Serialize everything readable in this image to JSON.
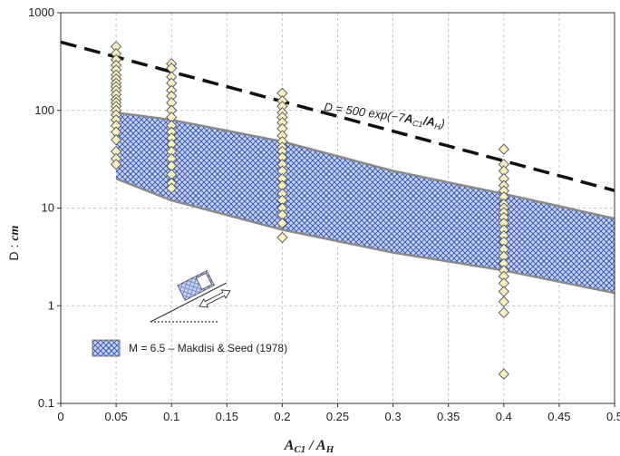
{
  "chart_data": {
    "type": "scatter",
    "title": "",
    "xlabel": "A",
    "xlabel_sub1": "C1",
    "xlabel_mid": " / A",
    "xlabel_sub2": "H",
    "ylabel_prefix": "D : ",
    "ylabel_unit": "cm",
    "xlim": [
      0,
      0.5
    ],
    "ylim": [
      0.1,
      1000
    ],
    "y_scale": "log",
    "grid": true,
    "x_ticks": [
      0,
      0.05,
      0.1,
      0.15,
      0.2,
      0.25,
      0.3,
      0.35,
      0.4,
      0.45,
      0.5
    ],
    "x_tick_labels": [
      "0",
      "0.05",
      "0.1",
      "0.15",
      "0.2",
      "0.25",
      "0.3",
      "0.35",
      "0.4",
      "0.45",
      "0.5"
    ],
    "y_ticks": [
      0.1,
      1,
      10,
      100,
      1000
    ],
    "y_tick_labels": [
      "0.1",
      "1",
      "10",
      "100",
      "1000"
    ],
    "points": {
      "0.05": [
        450,
        380,
        330,
        290,
        260,
        230,
        210,
        190,
        175,
        160,
        145,
        130,
        120,
        110,
        100,
        90,
        80,
        70,
        60,
        50,
        38,
        32,
        28
      ],
      "0.1": [
        300,
        270,
        220,
        190,
        160,
        140,
        120,
        100,
        85,
        70,
        60,
        52,
        45,
        38,
        32,
        27,
        22,
        18,
        16
      ],
      "0.2": [
        150,
        125,
        110,
        95,
        85,
        75,
        65,
        55,
        48,
        42,
        38,
        33,
        28,
        24,
        20,
        17,
        14,
        12,
        10,
        8.5,
        7,
        5
      ],
      "0.4": [
        40,
        28,
        24,
        20,
        17,
        15,
        13,
        11,
        10,
        9,
        8,
        7,
        6,
        5.2,
        4.5,
        3.8,
        3.2,
        2.7,
        2.3,
        2,
        1.7,
        1.4,
        1.1,
        0.85,
        0.2
      ]
    },
    "band": {
      "name": "M = 6.5 – Makdisi & Seed (1978)",
      "upper": [
        [
          0.05,
          95
        ],
        [
          0.1,
          80
        ],
        [
          0.2,
          48
        ],
        [
          0.3,
          24
        ],
        [
          0.4,
          14
        ],
        [
          0.5,
          7.8
        ]
      ],
      "lower": [
        [
          0.05,
          20
        ],
        [
          0.1,
          12
        ],
        [
          0.2,
          6
        ],
        [
          0.3,
          3.5
        ],
        [
          0.4,
          2.3
        ],
        [
          0.5,
          1.35
        ]
      ]
    },
    "curve": {
      "label_prefix": "D = 500 exp(−7",
      "label_a": "A",
      "label_sub1": "C1",
      "label_mid": "/A",
      "label_sub2": "H",
      "label_suffix": ")",
      "coefficient": 500,
      "exponent": -7
    },
    "legend_position": "bottom-left"
  }
}
